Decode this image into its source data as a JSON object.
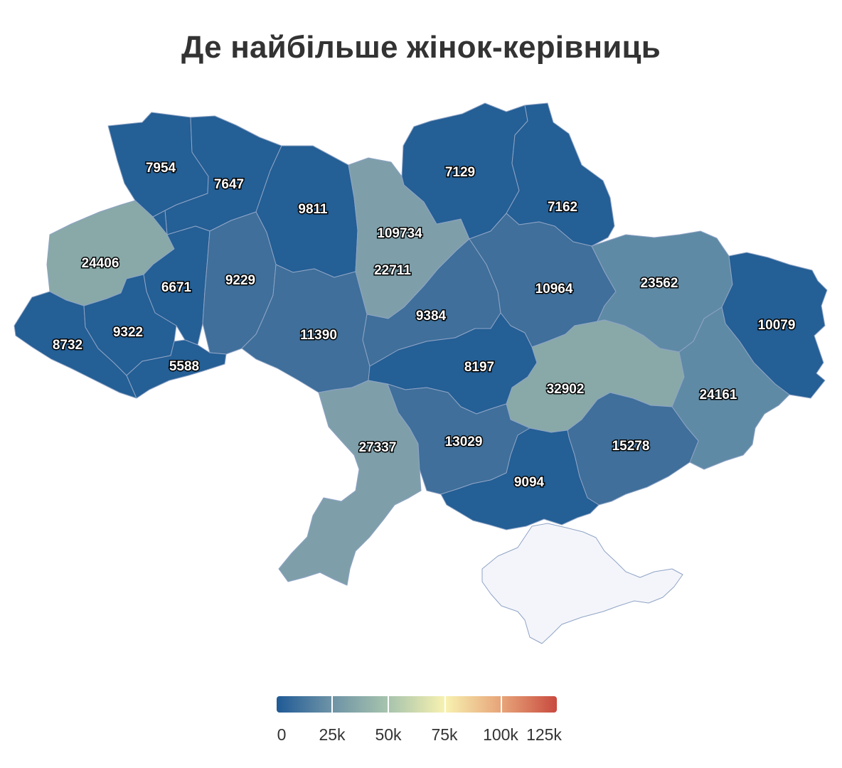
{
  "title": "Де найбільше жінок-керівниць",
  "regions": [
    {
      "id": "volyn",
      "value": "7954"
    },
    {
      "id": "rivne",
      "value": "7647"
    },
    {
      "id": "zhytomyr",
      "value": "9811"
    },
    {
      "id": "kyiv-city",
      "value": "109734"
    },
    {
      "id": "kyiv-oblast",
      "value": "22711"
    },
    {
      "id": "chernihiv",
      "value": "7129"
    },
    {
      "id": "sumy",
      "value": "7162"
    },
    {
      "id": "lviv",
      "value": "24406"
    },
    {
      "id": "ternopil",
      "value": "6671"
    },
    {
      "id": "khmelnytskyi",
      "value": "9229"
    },
    {
      "id": "zakarpattia",
      "value": "8732"
    },
    {
      "id": "ivano-frankivsk",
      "value": "9322"
    },
    {
      "id": "chernivtsi",
      "value": "5588"
    },
    {
      "id": "vinnytsia",
      "value": "11390"
    },
    {
      "id": "cherkasy",
      "value": "9384"
    },
    {
      "id": "poltava",
      "value": "10964"
    },
    {
      "id": "kharkiv",
      "value": "23562"
    },
    {
      "id": "luhansk",
      "value": "10079"
    },
    {
      "id": "kirovohrad",
      "value": "8197"
    },
    {
      "id": "dnipropetrovsk",
      "value": "32902"
    },
    {
      "id": "donetsk",
      "value": "24161"
    },
    {
      "id": "odesa",
      "value": "27337"
    },
    {
      "id": "mykolaiv",
      "value": "13029"
    },
    {
      "id": "zaporizhzhia",
      "value": "15278"
    },
    {
      "id": "kherson",
      "value": "9094"
    },
    {
      "id": "crimea",
      "value": ""
    }
  ],
  "legend": {
    "ticks": [
      "0",
      "25k",
      "50k",
      "75k",
      "100k",
      "125k"
    ],
    "colors": [
      "#1f5a96",
      "#6e93a6",
      "#a7c4ad",
      "#f7f1b0",
      "#e7a479",
      "#c94a3f"
    ]
  },
  "colors": {
    "dark_blue": "#245f95",
    "mid_blue": "#3f6f9a",
    "slate": "#5f8aa5",
    "grey_teal": "#7e9faa",
    "sage": "#88a9a8",
    "red": "#cf5646",
    "crimea_fill": "#f4f5fa"
  }
}
